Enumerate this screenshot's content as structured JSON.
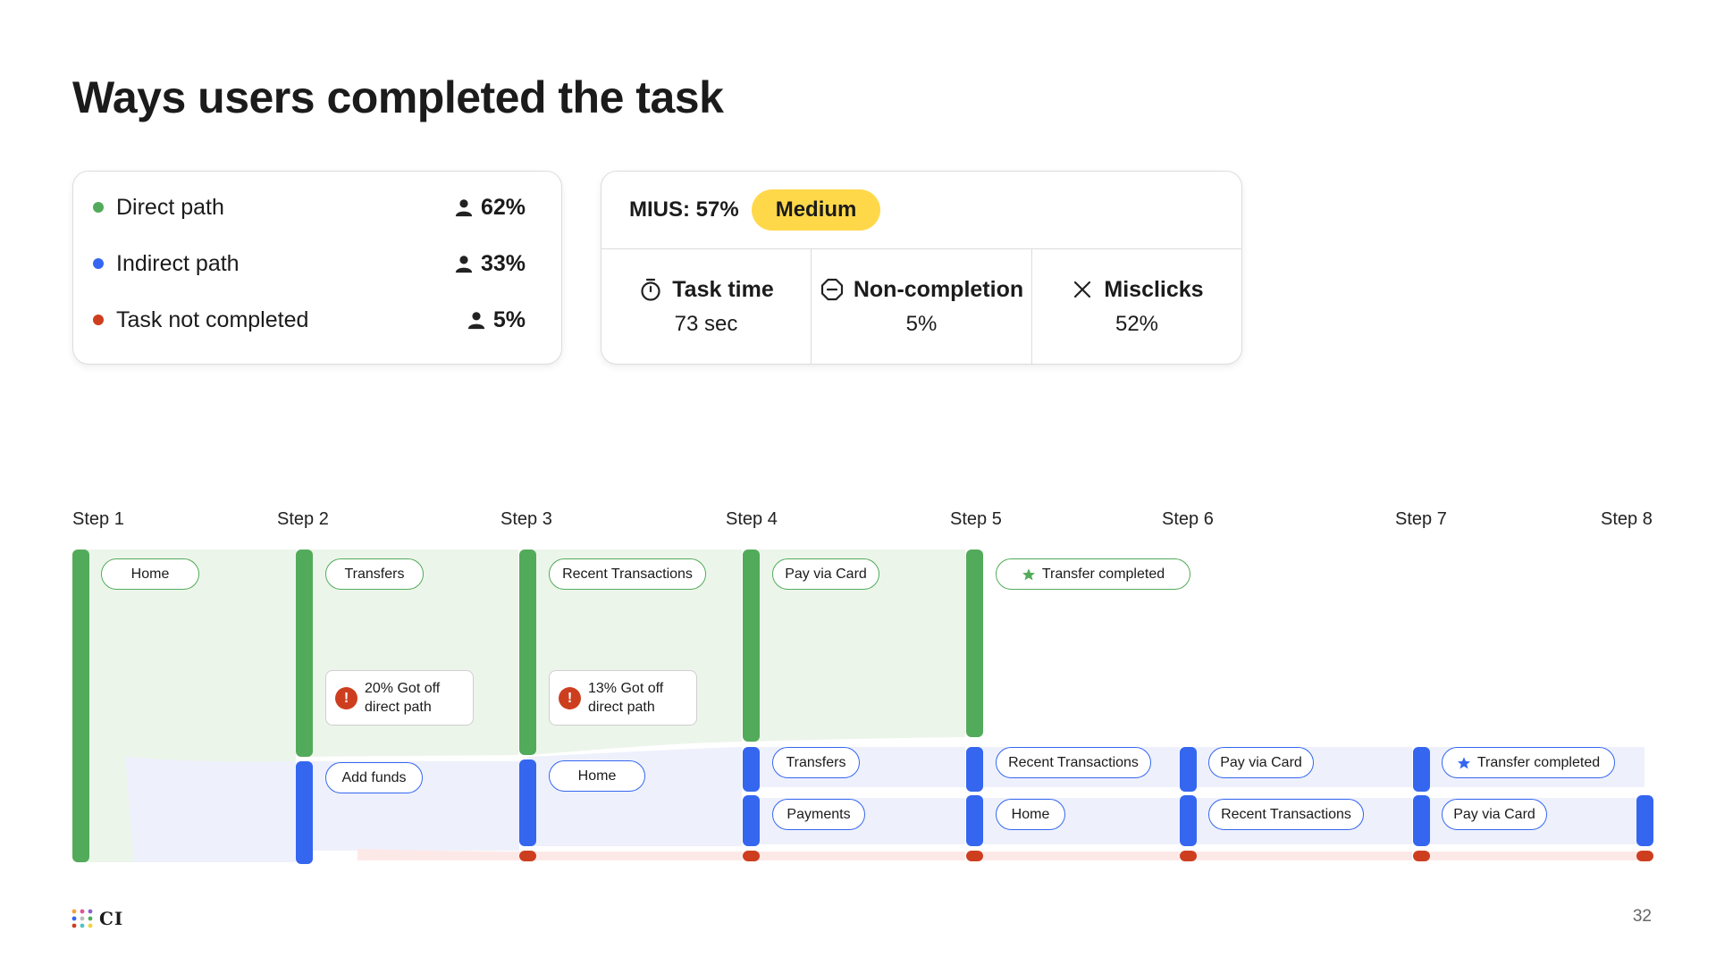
{
  "title": "Ways users completed the task",
  "legend": {
    "items": [
      {
        "label": "Direct path",
        "value": "62%",
        "color": "#52ab5a"
      },
      {
        "label": "Indirect path",
        "value": "33%",
        "color": "#3466f0"
      },
      {
        "label": "Task not completed",
        "value": "5%",
        "color": "#cd3e1f"
      }
    ],
    "icon": "user-icon"
  },
  "metrics": {
    "mius_label": "MIUS: 57%",
    "badge": "Medium",
    "badge_color": "#ffd84a",
    "items": [
      {
        "label": "Task time",
        "value": "73 sec",
        "icon": "stopwatch-icon"
      },
      {
        "label": "Non-completion",
        "value": "5%",
        "icon": "minus-octagon-icon"
      },
      {
        "label": "Misclicks",
        "value": "52%",
        "icon": "close-icon"
      }
    ]
  },
  "steps": [
    "Step 1",
    "Step 2",
    "Step 3",
    "Step 4",
    "Step 5",
    "Step 6",
    "Step 7",
    "Step 8"
  ],
  "direct_path": {
    "color": "#52ab5a",
    "nodes": [
      "Home",
      "Transfers",
      "Recent Transactions",
      "Pay via Card",
      "Transfer completed"
    ]
  },
  "indirect_path": {
    "color": "#3466f0",
    "nodes": [
      "Add funds",
      "Home",
      "Transfers",
      "Payments",
      "Recent Transactions",
      "Home",
      "Pay via Card",
      "Recent Transactions",
      "Transfer completed",
      "Pay via Card"
    ]
  },
  "drop_notes": [
    {
      "line1": "20% Got off",
      "line2": "direct path"
    },
    {
      "line1": "13% Got off",
      "line2": "direct path"
    }
  ],
  "not_completed_color": "#cd3e1f",
  "footer": {
    "logo": "CI",
    "page_number": "32"
  }
}
